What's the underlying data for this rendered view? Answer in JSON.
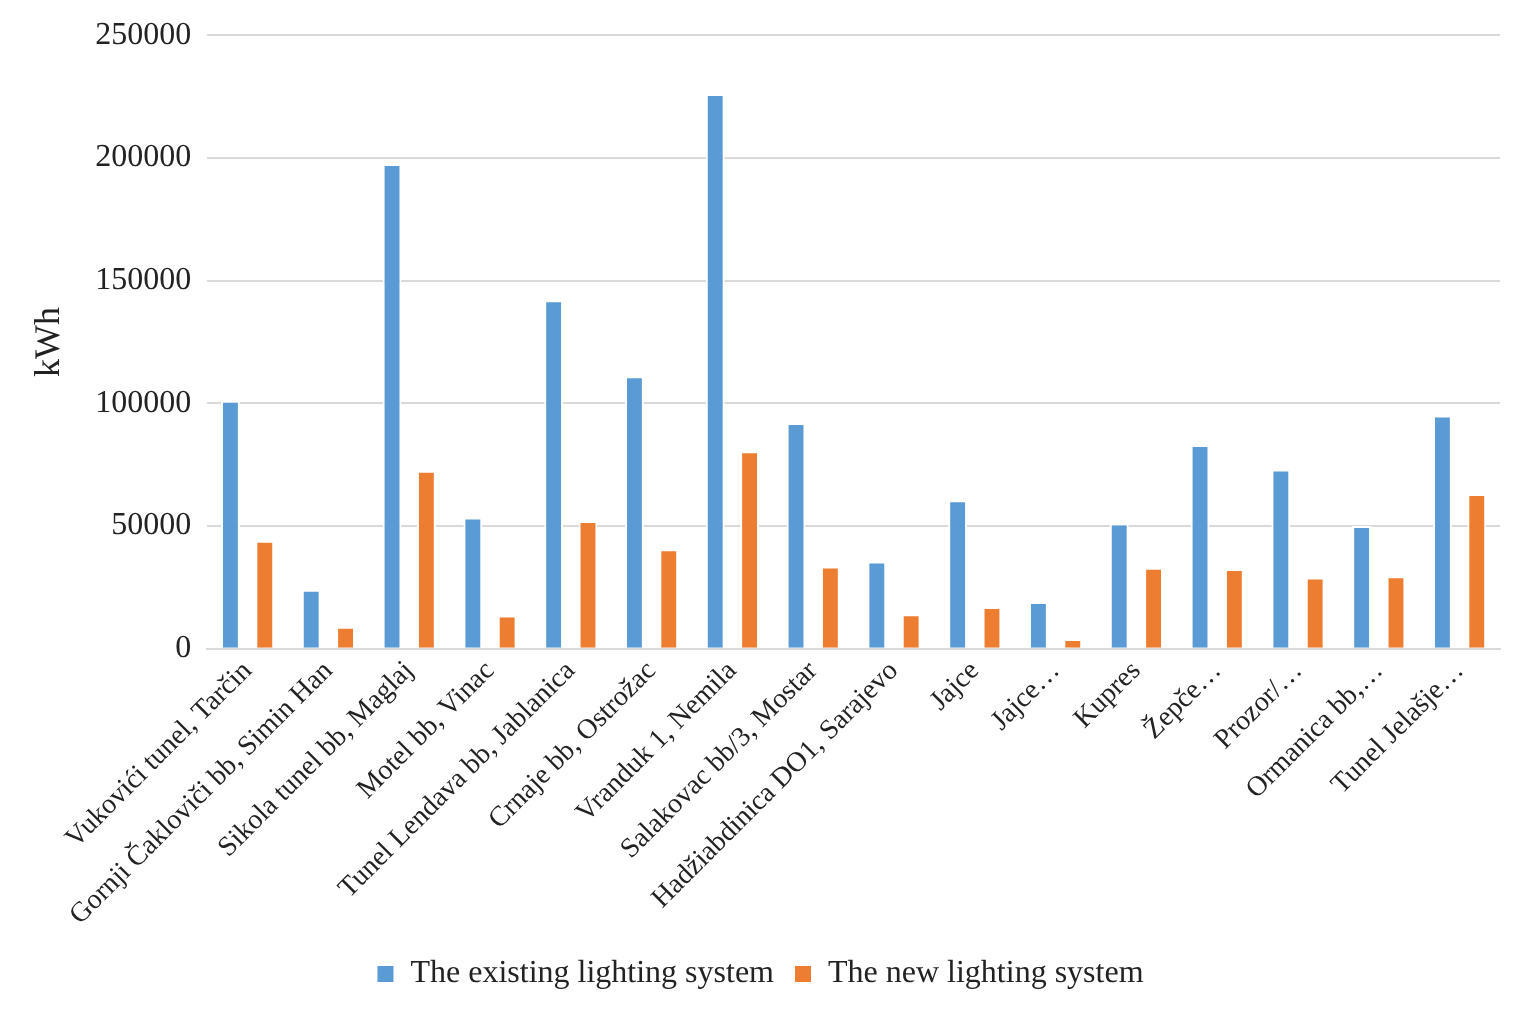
{
  "chart_data": {
    "type": "bar",
    "ylabel": "kWh",
    "categories": [
      "Vukovići tunel, Tarčin",
      "Gornji Čakloviči bb, Simin Han",
      "Sikola tunel bb, Maglaj",
      "Motel bb, Vinac",
      "Tunel Lendava bb, Jablanica",
      "Crnaje bb, Ostrožac",
      "Vranduk 1, Nemila",
      "Salakovac bb/3, Mostar",
      "Hadžiabdinica DO1, Sarajevo",
      "Jajce",
      "Jajce…",
      "Kupres",
      "Žepče…",
      "Prozor/…",
      "Ormanica bb,…",
      "Tunel Jelašje…"
    ],
    "series": [
      {
        "name": "The existing lighting system",
        "color": "#5b9bd5",
        "values": [
          101000,
          24000,
          197500,
          53500,
          142000,
          111000,
          226000,
          92000,
          35500,
          60500,
          19000,
          51000,
          83000,
          73000,
          50000,
          95000
        ]
      },
      {
        "name": "The new lighting system",
        "color": "#ed7d31",
        "values": [
          44000,
          9000,
          72500,
          13500,
          52000,
          40500,
          80500,
          33500,
          14000,
          17000,
          4000,
          33000,
          32500,
          29000,
          29500,
          63000
        ]
      }
    ],
    "ylim": [
      0,
      250000
    ],
    "yticks": [
      0,
      50000,
      100000,
      150000,
      200000,
      250000
    ],
    "grid": "y",
    "legend": "bottom"
  }
}
